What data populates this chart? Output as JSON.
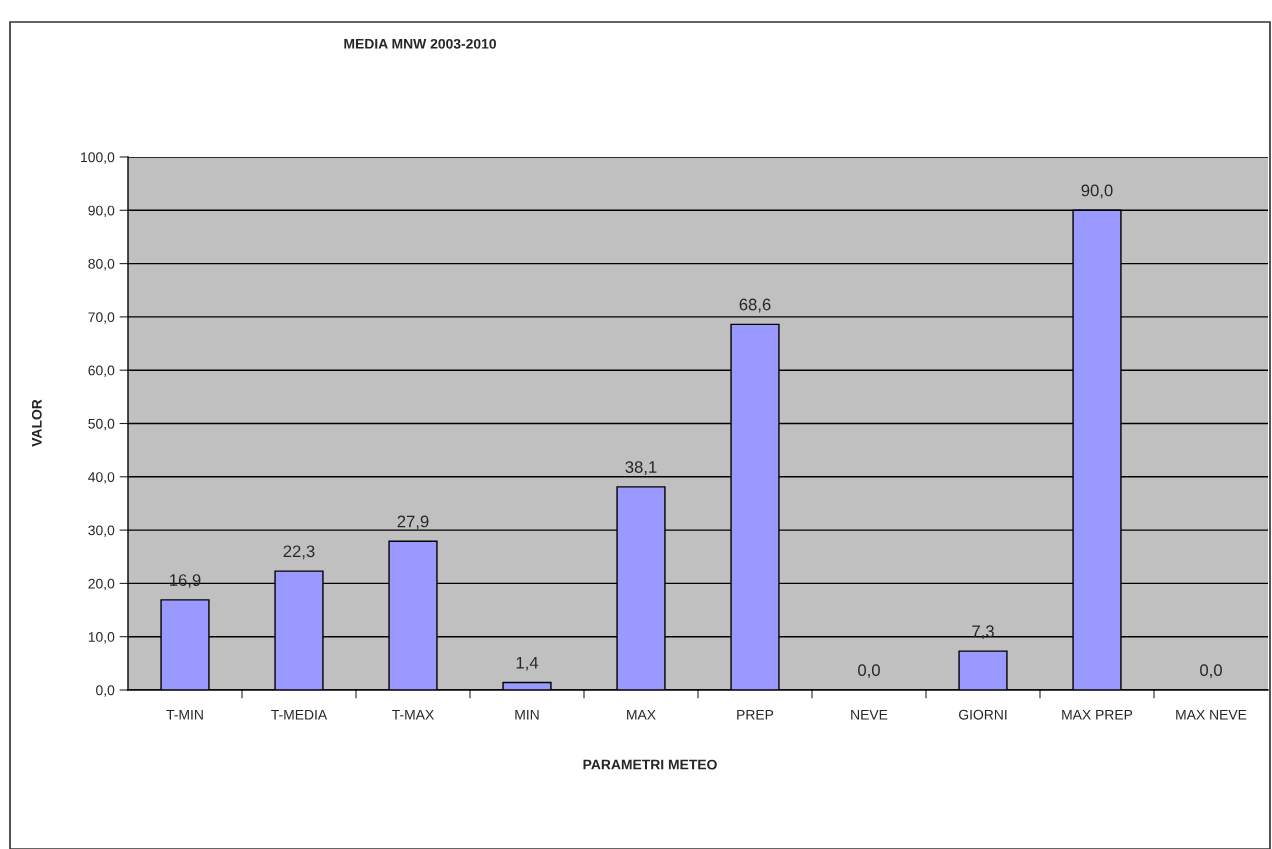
{
  "chart_data": {
    "type": "bar",
    "title": "MEDIA MNW 2003-2010",
    "xlabel": "PARAMETRI METEO",
    "ylabel": "VALOR",
    "categories": [
      "T-MIN",
      "T-MEDIA",
      "T-MAX",
      "MIN",
      "MAX",
      "PREP",
      "NEVE",
      "GIORNI",
      "MAX PREP",
      "MAX NEVE"
    ],
    "values": [
      16.9,
      22.3,
      27.9,
      1.4,
      38.1,
      68.6,
      0.0,
      7.3,
      90.0,
      0.0
    ],
    "value_labels": [
      "16,9",
      "22,3",
      "27,9",
      "1,4",
      "38,1",
      "68,6",
      "0,0",
      "7,3",
      "90,0",
      "0,0"
    ],
    "color": "#9999ff",
    "ylim": [
      0,
      100
    ],
    "yticks": [
      {
        "value": 0,
        "label": "0,0"
      },
      {
        "value": 10,
        "label": "10,0"
      },
      {
        "value": 20,
        "label": "20,0"
      },
      {
        "value": 30,
        "label": "30,0"
      },
      {
        "value": 40,
        "label": "40,0"
      },
      {
        "value": 50,
        "label": "50,0"
      },
      {
        "value": 60,
        "label": "60,0"
      },
      {
        "value": 70,
        "label": "70,0"
      },
      {
        "value": 80,
        "label": "80,0"
      },
      {
        "value": 90,
        "label": "90,0"
      },
      {
        "value": 100,
        "label": "100,0"
      }
    ],
    "grid": "y",
    "legend": false
  }
}
